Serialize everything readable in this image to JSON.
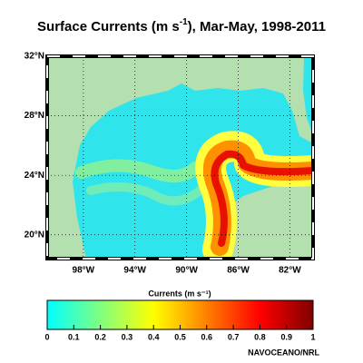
{
  "title": {
    "text": "Surface Currents (m s",
    "sup": "-1",
    "rest": "), Mar-May, 1998-2011"
  },
  "map": {
    "lonlim": [
      -100.8,
      -80.2
    ],
    "latlim": [
      18.4,
      32
    ],
    "lonticks": [
      {
        "value": -98,
        "label": "98°W"
      },
      {
        "value": -94,
        "label": "94°W"
      },
      {
        "value": -90,
        "label": "90°W"
      },
      {
        "value": -86,
        "label": "86°W"
      },
      {
        "value": -82,
        "label": "82°W"
      }
    ],
    "latticks": [
      {
        "value": 32,
        "label": "32°N"
      },
      {
        "value": 28,
        "label": "28°N"
      },
      {
        "value": 24,
        "label": "24°N"
      },
      {
        "value": 20,
        "label": "20°N"
      }
    ],
    "land_color": "#b4e0b0",
    "ocean_color": "#30e4ec"
  },
  "colorbar": {
    "label": "Currents (m s⁻¹)",
    "lim": [
      0,
      1
    ],
    "ticks": [
      0,
      0.1,
      0.2,
      0.3,
      0.4,
      0.5,
      0.6,
      0.7,
      0.8,
      0.9,
      1
    ],
    "colors": [
      "#00ffff",
      "#40ffc0",
      "#80ff80",
      "#c0ff40",
      "#ffff00",
      "#ffc000",
      "#ff8000",
      "#ff4000",
      "#ff0000",
      "#c00000",
      "#800000"
    ]
  },
  "credit": "NAVOCEANO/NRL"
}
